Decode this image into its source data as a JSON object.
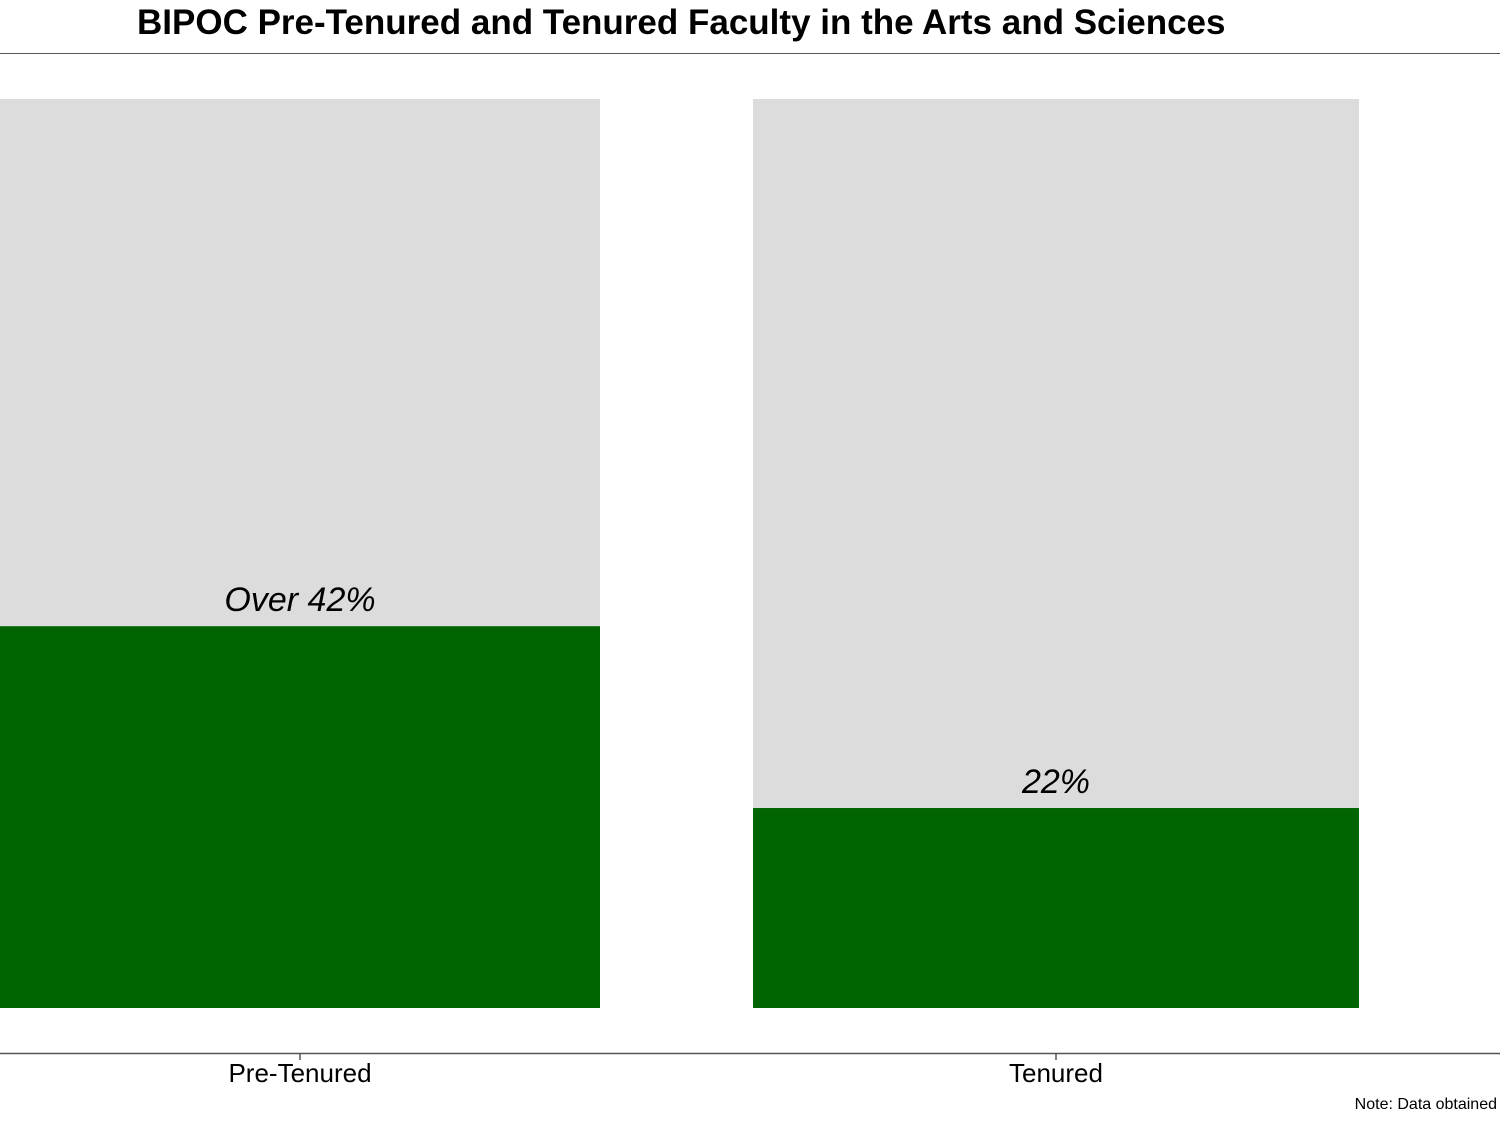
{
  "chart_data": {
    "type": "bar",
    "title": "BIPOC Pre-Tenured and Tenured Faculty in the Arts and Sciences",
    "categories": [
      "Pre-Tenured",
      "Tenured"
    ],
    "values": [
      42,
      22
    ],
    "data_labels": [
      "Over 42%",
      "22%"
    ],
    "ylim": [
      0,
      100
    ],
    "xlabel": "",
    "ylabel": "",
    "grid": false,
    "colors": {
      "bar": "#006400",
      "background_bar": "#dcdcdc",
      "axis": "#555555"
    }
  },
  "note": "Note: Data obtained"
}
